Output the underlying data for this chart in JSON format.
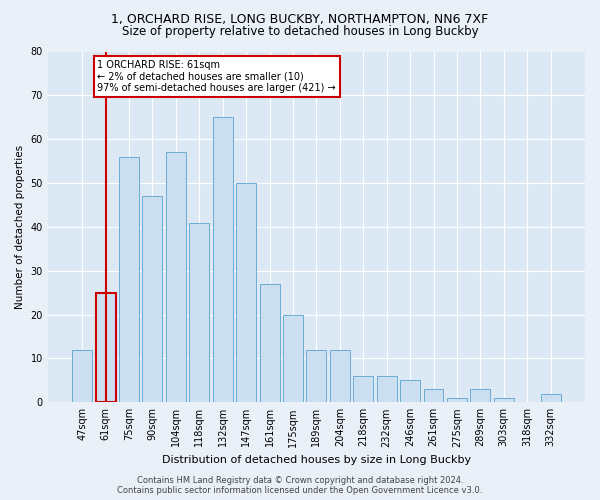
{
  "title": "1, ORCHARD RISE, LONG BUCKBY, NORTHAMPTON, NN6 7XF",
  "subtitle": "Size of property relative to detached houses in Long Buckby",
  "xlabel": "Distribution of detached houses by size in Long Buckby",
  "ylabel": "Number of detached properties",
  "categories": [
    "47sqm",
    "61sqm",
    "75sqm",
    "90sqm",
    "104sqm",
    "118sqm",
    "132sqm",
    "147sqm",
    "161sqm",
    "175sqm",
    "189sqm",
    "204sqm",
    "218sqm",
    "232sqm",
    "246sqm",
    "261sqm",
    "275sqm",
    "289sqm",
    "303sqm",
    "318sqm",
    "332sqm"
  ],
  "values": [
    12,
    25,
    56,
    47,
    57,
    41,
    65,
    50,
    27,
    20,
    12,
    12,
    6,
    6,
    5,
    3,
    1,
    3,
    1,
    0,
    2
  ],
  "bar_color": "#ccdff0",
  "bar_edge_color": "#6aadd5",
  "highlight_index": 1,
  "highlight_color": "#cc0000",
  "ylim": [
    0,
    80
  ],
  "yticks": [
    0,
    10,
    20,
    30,
    40,
    50,
    60,
    70,
    80
  ],
  "annotation_text": "1 ORCHARD RISE: 61sqm\n← 2% of detached houses are smaller (10)\n97% of semi-detached houses are larger (421) →",
  "annotation_box_color": "#ffffff",
  "annotation_box_edge": "#cc0000",
  "footer_line1": "Contains HM Land Registry data © Crown copyright and database right 2024.",
  "footer_line2": "Contains public sector information licensed under the Open Government Licence v3.0.",
  "bg_color": "#eaf0f8",
  "plot_bg_color": "#dce8f4",
  "grid_color": "#ffffff",
  "title_fontsize": 9,
  "subtitle_fontsize": 8.5,
  "xlabel_fontsize": 8,
  "ylabel_fontsize": 7.5,
  "tick_fontsize": 7,
  "annot_fontsize": 7,
  "footer_fontsize": 6
}
